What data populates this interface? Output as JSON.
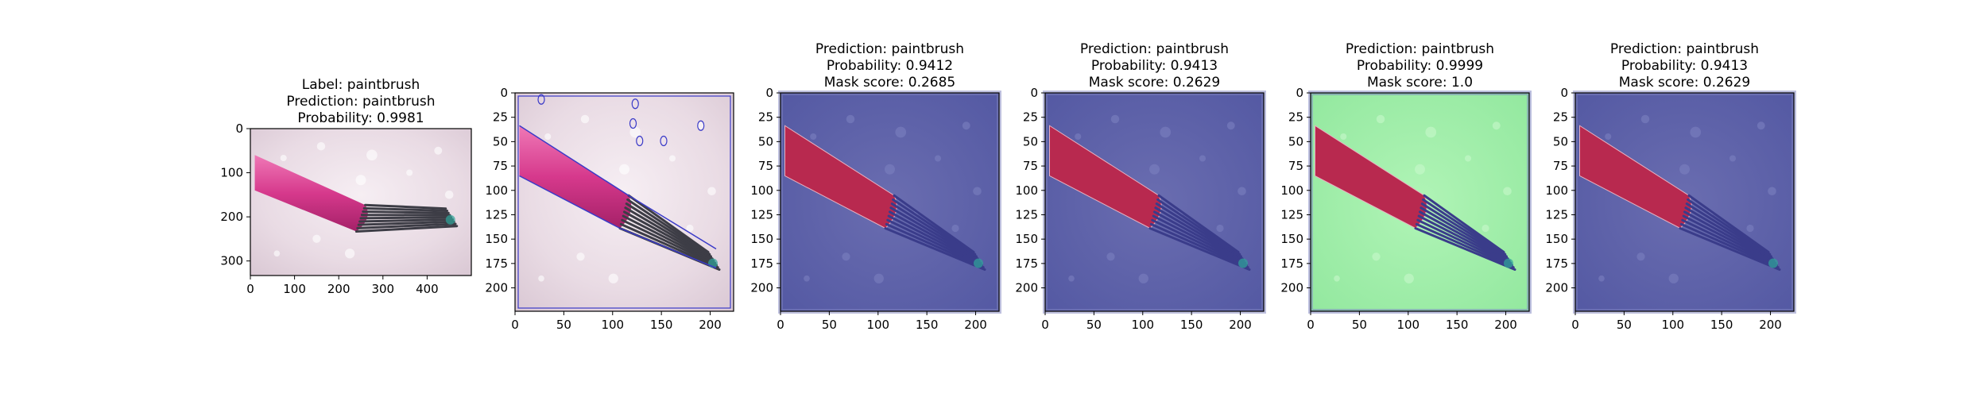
{
  "chart_data": [
    {
      "type": "image",
      "title_lines": [
        "Label: paintbrush",
        "Prediction: paintbrush",
        "Probability: 0.9981"
      ],
      "xticks": [
        0,
        100,
        200,
        300,
        400
      ],
      "yticks": [
        0,
        100,
        200,
        300
      ],
      "xlim": [
        0,
        500
      ],
      "ylim": [
        333,
        0
      ],
      "overlay": "none",
      "contours": false
    },
    {
      "type": "image",
      "title_lines": [],
      "xticks": [
        0,
        50,
        100,
        150,
        200
      ],
      "yticks": [
        0,
        25,
        50,
        75,
        100,
        125,
        150,
        175,
        200
      ],
      "xlim": [
        0,
        224
      ],
      "ylim": [
        224,
        0
      ],
      "overlay": "none",
      "contours": true
    },
    {
      "type": "image",
      "title_lines": [
        "Prediction: paintbrush",
        "Probability: 0.9412",
        "Mask score: 0.2685"
      ],
      "xticks": [
        0,
        50,
        100,
        150,
        200
      ],
      "yticks": [
        0,
        25,
        50,
        75,
        100,
        125,
        150,
        175,
        200
      ],
      "xlim": [
        0,
        224
      ],
      "ylim": [
        224,
        0
      ],
      "overlay": "blue",
      "contours": false
    },
    {
      "type": "image",
      "title_lines": [
        "Prediction: paintbrush",
        "Probability: 0.9413",
        "Mask score: 0.2629"
      ],
      "xticks": [
        0,
        50,
        100,
        150,
        200
      ],
      "yticks": [
        0,
        25,
        50,
        75,
        100,
        125,
        150,
        175,
        200
      ],
      "xlim": [
        0,
        224
      ],
      "ylim": [
        224,
        0
      ],
      "overlay": "blue",
      "contours": false
    },
    {
      "type": "image",
      "title_lines": [
        "Prediction: paintbrush",
        "Probability: 0.9999",
        "Mask score: 1.0"
      ],
      "xticks": [
        0,
        50,
        100,
        150,
        200
      ],
      "yticks": [
        0,
        25,
        50,
        75,
        100,
        125,
        150,
        175,
        200
      ],
      "xlim": [
        0,
        224
      ],
      "ylim": [
        224,
        0
      ],
      "overlay": "green",
      "contours": false
    },
    {
      "type": "image",
      "title_lines": [
        "Prediction: paintbrush",
        "Probability: 0.9413",
        "Mask score: 0.2629"
      ],
      "xticks": [
        0,
        50,
        100,
        150,
        200
      ],
      "yticks": [
        0,
        25,
        50,
        75,
        100,
        125,
        150,
        175,
        200
      ],
      "xlim": [
        0,
        224
      ],
      "ylim": [
        224,
        0
      ],
      "overlay": "blue",
      "contours": false
    }
  ],
  "colors": {
    "brush_pink": "#d6398c",
    "brush_red": "#b8294f",
    "bristles": "#3d3d46",
    "background_light": "#ede3ea",
    "overlay_blue": "#5a5fa8",
    "overlay_green": "#9cf0a6",
    "contour": "#3b3bc8"
  }
}
